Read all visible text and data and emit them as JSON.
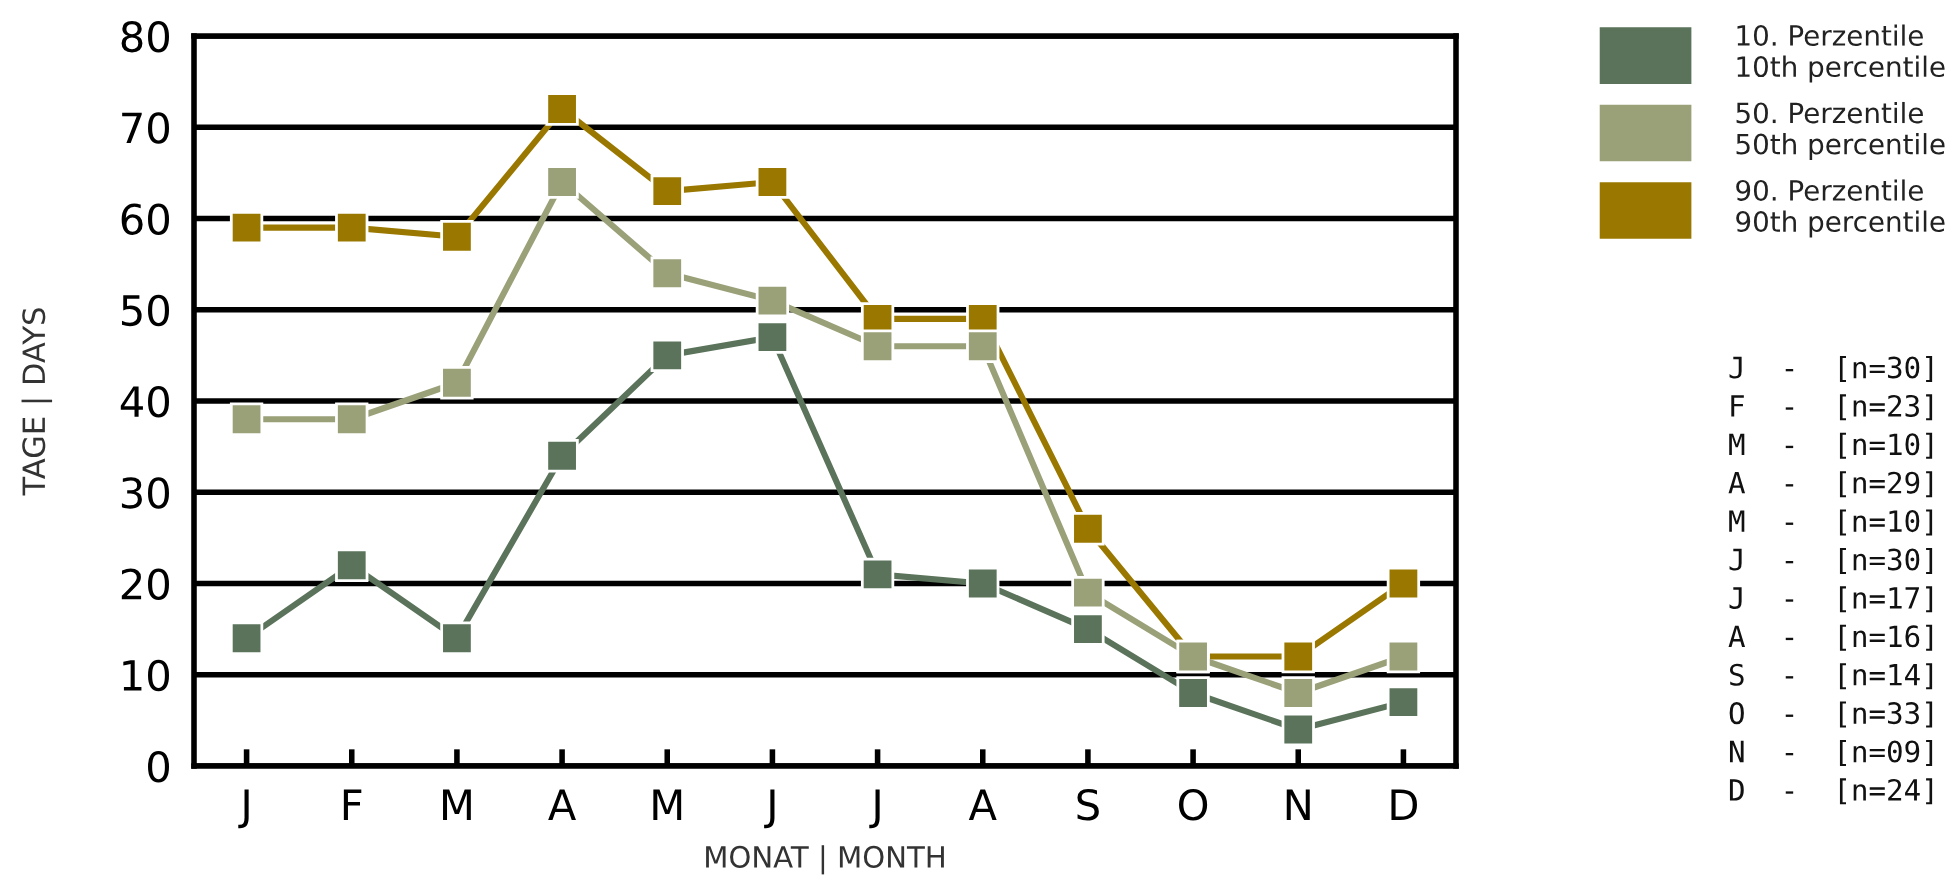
{
  "chart_data": {
    "type": "line",
    "xlabel": "MONAT | MONTH",
    "ylabel": "TAGE | DAYS",
    "categories": [
      "J",
      "F",
      "M",
      "A",
      "M",
      "J",
      "J",
      "A",
      "S",
      "O",
      "N",
      "D"
    ],
    "series": [
      {
        "name": "10. Perzentile\n10th percentile",
        "color": "#5a735a",
        "values": [
          14,
          22,
          14,
          34,
          45,
          47,
          21,
          20,
          15,
          8,
          4,
          7
        ]
      },
      {
        "name": "50. Perzentile\n50th percentile",
        "color": "#9aa078",
        "values": [
          38,
          38,
          42,
          64,
          54,
          51,
          46,
          46,
          19,
          12,
          8,
          12
        ]
      },
      {
        "name": "90. Perzentile\n90th percentile",
        "color": "#9a7800",
        "values": [
          59,
          59,
          58,
          72,
          63,
          64,
          49,
          49,
          26,
          12,
          12,
          20
        ]
      }
    ],
    "ylim": [
      0,
      80
    ],
    "yticks": [
      0,
      10,
      20,
      30,
      40,
      50,
      60,
      70,
      80
    ],
    "grid": "y",
    "legend": "right",
    "marker": "square",
    "line_style": "solid",
    "annotations": [
      "J  -  [n=30]",
      "F  -  [n=23]",
      "M  -  [n=10]",
      "A  -  [n=29]",
      "M  -  [n=10]",
      "J  -  [n=30]",
      "J  -  [n=17]",
      "A  -  [n=16]",
      "S  -  [n=14]",
      "O  -  [n=33]",
      "N  -  [n=09]",
      "D  -  [n=24]"
    ]
  }
}
